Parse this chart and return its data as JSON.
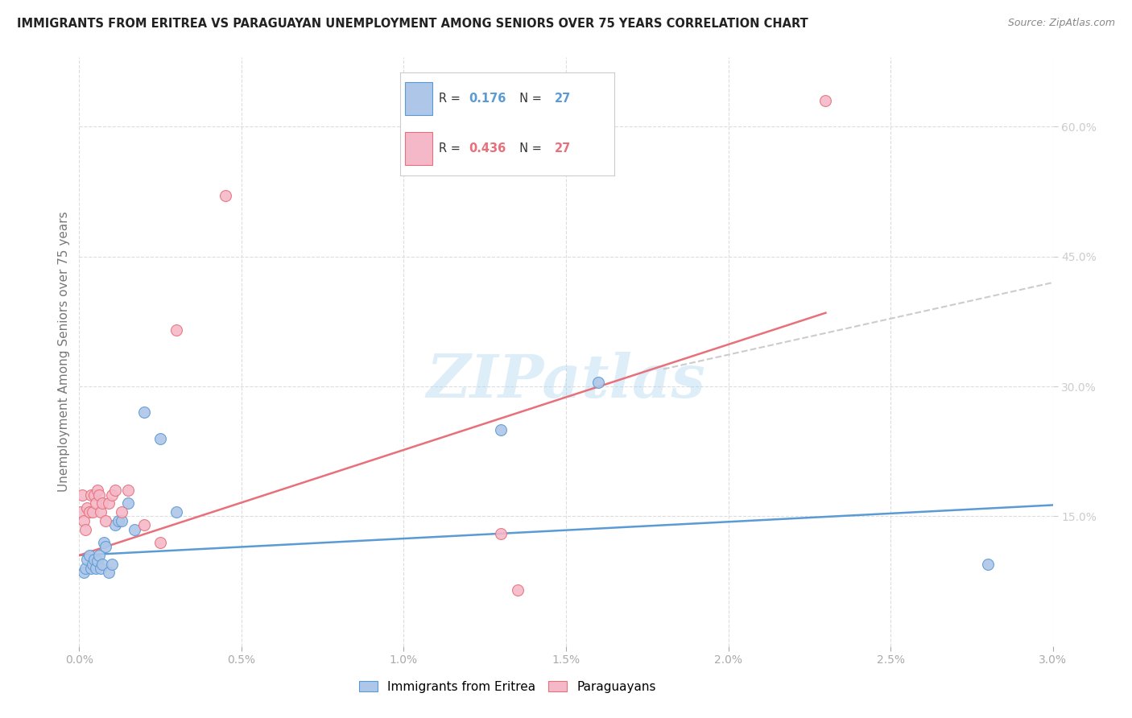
{
  "title": "IMMIGRANTS FROM ERITREA VS PARAGUAYAN UNEMPLOYMENT AMONG SENIORS OVER 75 YEARS CORRELATION CHART",
  "source": "Source: ZipAtlas.com",
  "ylabel": "Unemployment Among Seniors over 75 years",
  "legend_blue_R": "0.176",
  "legend_blue_N": "27",
  "legend_pink_R": "0.436",
  "legend_pink_N": "27",
  "blue_fill_color": "#aec6e8",
  "blue_edge_color": "#5b9bd5",
  "pink_fill_color": "#f4b8c8",
  "pink_edge_color": "#e8707a",
  "watermark": "ZIPatlas",
  "blue_scatter_x": [
    0.00015,
    0.0002,
    0.00025,
    0.0003,
    0.00035,
    0.0004,
    0.00045,
    0.0005,
    0.00055,
    0.0006,
    0.00065,
    0.0007,
    0.00075,
    0.0008,
    0.0009,
    0.001,
    0.0011,
    0.0012,
    0.0013,
    0.0015,
    0.0017,
    0.002,
    0.0025,
    0.003,
    0.013,
    0.016,
    0.028
  ],
  "blue_scatter_y": [
    0.085,
    0.09,
    0.1,
    0.105,
    0.09,
    0.095,
    0.1,
    0.09,
    0.098,
    0.105,
    0.09,
    0.095,
    0.12,
    0.115,
    0.085,
    0.095,
    0.14,
    0.145,
    0.145,
    0.165,
    0.135,
    0.27,
    0.24,
    0.155,
    0.25,
    0.305,
    0.095
  ],
  "pink_scatter_x": [
    5e-05,
    0.0001,
    0.00015,
    0.0002,
    0.00025,
    0.0003,
    0.00035,
    0.0004,
    0.00045,
    0.0005,
    0.00055,
    0.0006,
    0.00065,
    0.0007,
    0.0008,
    0.0009,
    0.001,
    0.0011,
    0.0013,
    0.0015,
    0.002,
    0.0025,
    0.003,
    0.0045,
    0.013,
    0.0135,
    0.023
  ],
  "pink_scatter_y": [
    0.155,
    0.175,
    0.145,
    0.135,
    0.16,
    0.155,
    0.175,
    0.155,
    0.175,
    0.165,
    0.18,
    0.175,
    0.155,
    0.165,
    0.145,
    0.165,
    0.175,
    0.18,
    0.155,
    0.18,
    0.14,
    0.12,
    0.365,
    0.52,
    0.13,
    0.065,
    0.63
  ],
  "xlim": [
    0.0,
    0.03
  ],
  "ylim": [
    0.0,
    0.68
  ],
  "blue_line_x": [
    0.0,
    0.03
  ],
  "blue_line_y": [
    0.105,
    0.163
  ],
  "pink_line_x": [
    0.0,
    0.023
  ],
  "pink_line_y": [
    0.105,
    0.385
  ],
  "dashed_line_x": [
    0.018,
    0.03
  ],
  "dashed_line_y": [
    0.32,
    0.42
  ],
  "right_yticks": [
    0.15,
    0.3,
    0.45,
    0.6
  ],
  "right_ytick_labels": [
    "15.0%",
    "30.0%",
    "45.0%",
    "60.0%"
  ]
}
